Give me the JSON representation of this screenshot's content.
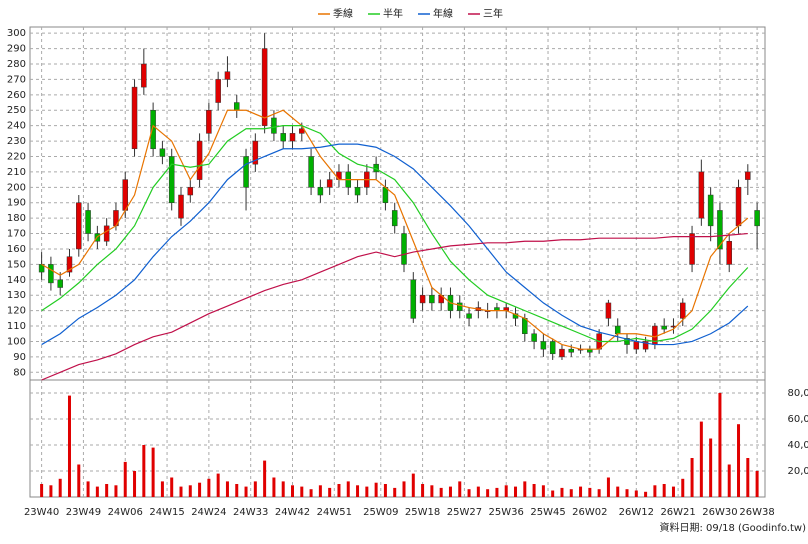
{
  "chart_data": [
    {
      "type": "candlestick",
      "legend": "top",
      "up_color": "#e00000",
      "down_color": "#00b000",
      "grid": true,
      "xlim": [
        -2.5,
        155.7
      ],
      "ylim": [
        75,
        304
      ],
      "yticks": [
        80,
        90,
        100,
        110,
        120,
        130,
        140,
        150,
        160,
        170,
        180,
        190,
        200,
        210,
        220,
        230,
        240,
        250,
        260,
        270,
        280,
        290,
        300
      ],
      "x": [
        0,
        2,
        4,
        6,
        8,
        10,
        12,
        14,
        16,
        18,
        20,
        22,
        24,
        26,
        28,
        30,
        32,
        34,
        36,
        38,
        40,
        42,
        44,
        46,
        48,
        50,
        52,
        54,
        56,
        58,
        60,
        62,
        64,
        66,
        68,
        70,
        72,
        74,
        76,
        78,
        80,
        82,
        84,
        86,
        88,
        90,
        92,
        94,
        96,
        98,
        100,
        102,
        104,
        106,
        108,
        110,
        112,
        114,
        116,
        118,
        120,
        122,
        124,
        126,
        128,
        130,
        132,
        134,
        136,
        138,
        140,
        142,
        144,
        146,
        148,
        150,
        152,
        154
      ],
      "open": [
        150,
        150,
        140,
        145,
        160,
        185,
        170,
        165,
        175,
        185,
        225,
        265,
        250,
        225,
        220,
        180,
        195,
        205,
        235,
        255,
        270,
        255,
        220,
        215,
        240,
        245,
        235,
        230,
        235,
        220,
        200,
        200,
        205,
        210,
        200,
        200,
        215,
        200,
        185,
        170,
        140,
        125,
        130,
        125,
        130,
        125,
        118,
        120,
        120,
        122,
        120,
        118,
        115,
        105,
        100,
        100,
        90,
        95,
        95,
        95,
        95,
        115,
        110,
        102,
        95,
        95,
        98,
        110,
        110,
        115,
        150,
        180,
        195,
        185,
        150,
        175,
        205,
        185
      ],
      "high": [
        158,
        155,
        145,
        160,
        195,
        190,
        175,
        180,
        190,
        210,
        270,
        290,
        255,
        230,
        225,
        200,
        205,
        235,
        255,
        275,
        285,
        260,
        225,
        235,
        300,
        250,
        240,
        240,
        242,
        225,
        205,
        210,
        215,
        215,
        205,
        215,
        220,
        205,
        190,
        175,
        145,
        135,
        135,
        135,
        135,
        130,
        122,
        126,
        125,
        125,
        125,
        122,
        118,
        108,
        105,
        102,
        98,
        98,
        98,
        97,
        108,
        127,
        115,
        105,
        103,
        103,
        112,
        115,
        115,
        128,
        175,
        218,
        200,
        190,
        170,
        205,
        215,
        190
      ],
      "low": [
        140,
        133,
        130,
        142,
        155,
        165,
        160,
        162,
        172,
        180,
        220,
        260,
        220,
        215,
        185,
        175,
        190,
        200,
        230,
        250,
        265,
        245,
        185,
        210,
        235,
        230,
        225,
        225,
        230,
        195,
        190,
        195,
        200,
        195,
        190,
        195,
        205,
        185,
        170,
        145,
        112,
        120,
        120,
        120,
        115,
        115,
        110,
        115,
        115,
        115,
        115,
        110,
        100,
        95,
        90,
        88,
        88,
        90,
        92,
        90,
        92,
        110,
        100,
        92,
        92,
        93,
        95,
        105,
        105,
        110,
        145,
        175,
        165,
        150,
        145,
        170,
        195,
        160
      ],
      "close": [
        145,
        138,
        135,
        155,
        190,
        170,
        165,
        175,
        185,
        205,
        265,
        280,
        225,
        220,
        190,
        195,
        200,
        230,
        250,
        270,
        275,
        250,
        200,
        230,
        290,
        235,
        230,
        235,
        238,
        200,
        195,
        205,
        210,
        200,
        195,
        210,
        210,
        190,
        175,
        150,
        115,
        130,
        125,
        130,
        120,
        120,
        115,
        122,
        120,
        120,
        122,
        115,
        105,
        100,
        95,
        92,
        95,
        93,
        95,
        93,
        105,
        125,
        105,
        98,
        100,
        100,
        110,
        108,
        110,
        125,
        170,
        210,
        175,
        160,
        165,
        200,
        210,
        175
      ],
      "series": [
        {
          "name": "季線",
          "color": "#e87400",
          "x": [
            0,
            4,
            8,
            12,
            16,
            20,
            24,
            28,
            32,
            36,
            40,
            44,
            48,
            52,
            56,
            60,
            64,
            68,
            72,
            76,
            80,
            84,
            88,
            92,
            96,
            100,
            104,
            108,
            112,
            116,
            120,
            124,
            128,
            132,
            136,
            140,
            144,
            148,
            152
          ],
          "values": [
            150,
            143,
            150,
            168,
            175,
            195,
            240,
            230,
            205,
            222,
            250,
            250,
            245,
            250,
            240,
            220,
            205,
            205,
            205,
            195,
            165,
            135,
            125,
            122,
            120,
            120,
            115,
            105,
            98,
            95,
            95,
            105,
            105,
            103,
            108,
            120,
            155,
            170,
            180
          ]
        },
        {
          "name": "半年",
          "color": "#22cc22",
          "x": [
            0,
            4,
            8,
            12,
            16,
            20,
            24,
            28,
            32,
            36,
            40,
            44,
            48,
            52,
            56,
            60,
            64,
            68,
            72,
            76,
            80,
            84,
            88,
            92,
            96,
            100,
            104,
            108,
            112,
            116,
            120,
            124,
            128,
            132,
            136,
            140,
            144,
            148,
            152
          ],
          "values": [
            120,
            128,
            138,
            150,
            160,
            175,
            200,
            215,
            213,
            215,
            230,
            238,
            238,
            240,
            240,
            235,
            222,
            215,
            212,
            205,
            190,
            170,
            152,
            140,
            130,
            125,
            120,
            115,
            110,
            105,
            100,
            100,
            102,
            100,
            102,
            108,
            120,
            135,
            148
          ]
        },
        {
          "name": "年線",
          "color": "#1060d0",
          "x": [
            0,
            4,
            8,
            12,
            16,
            20,
            24,
            28,
            32,
            36,
            40,
            44,
            48,
            52,
            56,
            60,
            64,
            68,
            72,
            76,
            80,
            84,
            88,
            92,
            96,
            100,
            104,
            108,
            112,
            116,
            120,
            124,
            128,
            132,
            136,
            140,
            144,
            148,
            152
          ],
          "values": [
            98,
            105,
            115,
            122,
            130,
            140,
            155,
            168,
            178,
            190,
            205,
            215,
            220,
            225,
            225,
            226,
            228,
            228,
            226,
            220,
            212,
            200,
            188,
            175,
            160,
            145,
            135,
            125,
            117,
            110,
            106,
            103,
            100,
            98,
            98,
            100,
            105,
            112,
            123
          ]
        },
        {
          "name": "三年",
          "color": "#c0104a",
          "x": [
            0,
            4,
            8,
            12,
            16,
            20,
            24,
            28,
            32,
            36,
            40,
            44,
            48,
            52,
            56,
            60,
            64,
            68,
            72,
            76,
            80,
            84,
            88,
            92,
            96,
            100,
            104,
            108,
            112,
            116,
            120,
            124,
            128,
            132,
            136,
            140,
            144,
            148,
            152
          ],
          "values": [
            75,
            80,
            85,
            88,
            92,
            98,
            103,
            106,
            112,
            118,
            123,
            128,
            133,
            137,
            140,
            145,
            150,
            155,
            158,
            155,
            158,
            160,
            162,
            163,
            164,
            164,
            165,
            165,
            166,
            166,
            167,
            167,
            167,
            167,
            168,
            168,
            168,
            169,
            170
          ]
        }
      ]
    },
    {
      "type": "bar",
      "color": "#e00000",
      "grid": true,
      "xlim": [
        -2.5,
        155.7
      ],
      "ylim": [
        0,
        90000
      ],
      "yticks": [
        {
          "value": 20000,
          "label": "20,000"
        },
        {
          "value": 40000,
          "label": "40,000"
        },
        {
          "value": 60000,
          "label": "60,000"
        },
        {
          "value": 80000,
          "label": "80,000"
        }
      ],
      "xticks": [
        {
          "value": 0,
          "label": "23W40"
        },
        {
          "value": 9,
          "label": "23W49"
        },
        {
          "value": 18,
          "label": "24W06"
        },
        {
          "value": 27,
          "label": "24W15"
        },
        {
          "value": 36,
          "label": "24W24"
        },
        {
          "value": 45,
          "label": "24W33"
        },
        {
          "value": 54,
          "label": "24W42"
        },
        {
          "value": 63,
          "label": "24W51"
        },
        {
          "value": 73,
          "label": "25W09"
        },
        {
          "value": 82,
          "label": "25W18"
        },
        {
          "value": 91,
          "label": "25W27"
        },
        {
          "value": 100,
          "label": "25W36"
        },
        {
          "value": 109,
          "label": "25W45"
        },
        {
          "value": 118,
          "label": "26W02"
        },
        {
          "value": 128,
          "label": "26W12"
        },
        {
          "value": 137,
          "label": "26W21"
        },
        {
          "value": 146,
          "label": "26W30"
        },
        {
          "value": 154,
          "label": "26W38"
        }
      ],
      "x": [
        0,
        2,
        4,
        6,
        8,
        10,
        12,
        14,
        16,
        18,
        20,
        22,
        24,
        26,
        28,
        30,
        32,
        34,
        36,
        38,
        40,
        42,
        44,
        46,
        48,
        50,
        52,
        54,
        56,
        58,
        60,
        62,
        64,
        66,
        68,
        70,
        72,
        74,
        76,
        78,
        80,
        82,
        84,
        86,
        88,
        90,
        92,
        94,
        96,
        98,
        100,
        102,
        104,
        106,
        108,
        110,
        112,
        114,
        116,
        118,
        120,
        122,
        124,
        126,
        128,
        130,
        132,
        134,
        136,
        138,
        140,
        142,
        144,
        146,
        148,
        150,
        152,
        154
      ],
      "values": [
        10000,
        9000,
        14000,
        78000,
        25000,
        12000,
        8000,
        10000,
        9000,
        27000,
        20000,
        40000,
        38000,
        12000,
        15000,
        8000,
        9000,
        11000,
        14000,
        18000,
        12000,
        10000,
        8000,
        12000,
        28000,
        15000,
        12000,
        9000,
        8000,
        6000,
        9000,
        7000,
        10000,
        12000,
        9000,
        8000,
        11000,
        10000,
        7000,
        12000,
        18000,
        10000,
        9000,
        7000,
        8000,
        12000,
        6000,
        8000,
        6000,
        7000,
        9000,
        8000,
        12000,
        10000,
        9000,
        5000,
        7000,
        6000,
        8000,
        7000,
        6000,
        15000,
        8000,
        6000,
        5000,
        4000,
        9000,
        10000,
        8000,
        14000,
        30000,
        58000,
        45000,
        80000,
        25000,
        56000,
        30000,
        20000
      ],
      "footnote": "資料日期: 09/18 (Goodinfo.tw)"
    }
  ]
}
